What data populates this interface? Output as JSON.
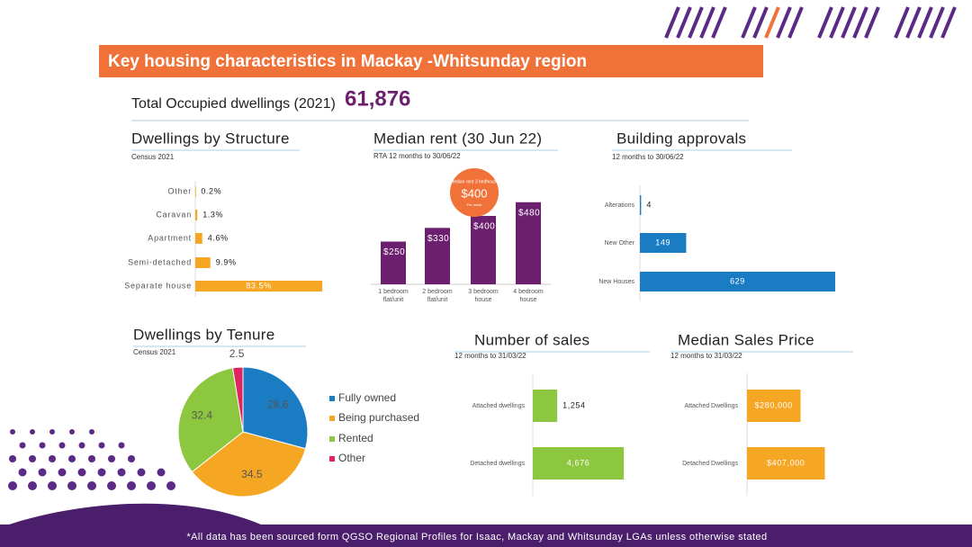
{
  "title": "Key housing characteristics in Mackay -Whitsunday region",
  "total": {
    "label": "Total Occupied dwellings (2021)",
    "value": "61,876"
  },
  "footer": "*All data has been sourced form QGSO Regional Profiles for Isaac, Mackay and Whitsunday LGAs unless otherwise stated",
  "chart_data": [
    {
      "type": "hbar",
      "title": "Dwellings by Structure",
      "subtitle": "Census 2021",
      "categories": [
        "Other",
        "Caravan",
        "Apartment",
        "Semi-detached",
        "Separate house"
      ],
      "values": [
        0.2,
        1.3,
        4.6,
        9.9,
        83.5
      ],
      "value_labels": [
        "0.2%",
        "1.3%",
        "4.6%",
        "9.9%",
        "83.5%"
      ],
      "color": "#f5a623",
      "xlim": [
        0,
        100
      ]
    },
    {
      "type": "bar",
      "title": "Median rent (30 Jun 22)",
      "subtitle": "RTA 12 months to 30/06/22",
      "categories": [
        "1 bedroom flat/unit",
        "2 bedroom flat/unit",
        "3 bedroom house",
        "4 bedroom house"
      ],
      "values": [
        250,
        330,
        400,
        480
      ],
      "value_labels": [
        "$250",
        "$330",
        "$400",
        "$480"
      ],
      "color": "#6b1f6e",
      "ylim": [
        0,
        600
      ],
      "annotations": [
        "Median rent 3 bedhouse",
        "Per week"
      ]
    },
    {
      "type": "hbar",
      "title": "Building approvals",
      "subtitle": "12 months to 30/06/22",
      "categories": [
        "Alterations",
        "New Other",
        "New Houses"
      ],
      "values": [
        4,
        149,
        629
      ],
      "color": "#1a7dc4",
      "xlim": [
        0,
        800
      ]
    },
    {
      "type": "pie",
      "title": "Dwellings by Tenure",
      "subtitle": "Census 2021",
      "categories": [
        "Fully owned",
        "Being purchased",
        "Rented",
        "Other"
      ],
      "values": [
        28.6,
        34.5,
        32.4,
        2.5
      ],
      "colors": [
        "#1a7dc4",
        "#f5a623",
        "#8dc63f",
        "#e0245e"
      ]
    },
    {
      "type": "hbar",
      "title": "Number of sales",
      "subtitle": "12 months to 31/03/22",
      "categories": [
        "Attached dwellings",
        "Detached dwellings"
      ],
      "values": [
        1254,
        4676
      ],
      "value_labels": [
        "1,254",
        "4,676"
      ],
      "color": "#8dc63f",
      "xlim": [
        0,
        8000
      ]
    },
    {
      "type": "hbar",
      "title": "Median Sales Price",
      "subtitle": "12 months to 31/03/22",
      "categories": [
        "Attached Dwellings",
        "Detached Dwellings"
      ],
      "values": [
        280000,
        407000
      ],
      "value_labels": [
        "$280,000",
        "$407,000"
      ],
      "color": "#f5a623",
      "xlim": [
        0,
        800000
      ]
    }
  ]
}
